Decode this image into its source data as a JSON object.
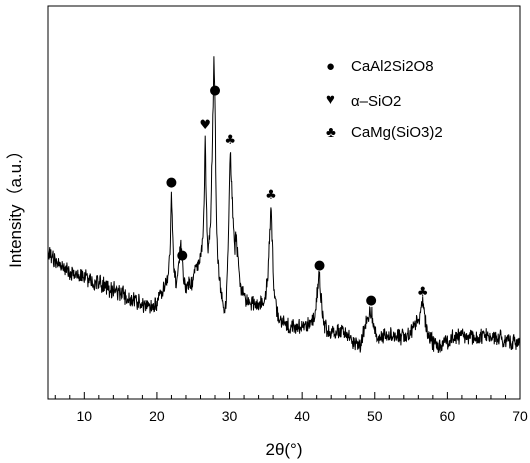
{
  "chart_data": {
    "type": "line",
    "title": "",
    "xlabel": "2θ(°)",
    "ylabel": "Intensity（a.u.）",
    "xlim": [
      5,
      70
    ],
    "x_ticks": [
      10,
      20,
      30,
      40,
      50,
      60,
      70
    ],
    "y_ticks": [],
    "grid": false,
    "legend_position": "top-right",
    "pattern_x": [
      5,
      6,
      8,
      10,
      12,
      14,
      16,
      18,
      19,
      20,
      20.5,
      21,
      21.5,
      21.8,
      22.0,
      22.3,
      22.6,
      23.0,
      23.3,
      23.6,
      23.9,
      24.3,
      24.8,
      25.3,
      25.8,
      26.2,
      26.5,
      26.65,
      26.8,
      27.0,
      27.4,
      27.7,
      27.85,
      28.0,
      28.15,
      28.35,
      28.7,
      29.1,
      29.4,
      29.6,
      29.85,
      30.1,
      30.4,
      30.7,
      30.9,
      31.2,
      31.6,
      32.2,
      33,
      34,
      34.8,
      35.3,
      35.55,
      35.7,
      35.85,
      36.1,
      36.5,
      37.2,
      38,
      39,
      40,
      41,
      41.8,
      42.2,
      42.4,
      42.6,
      42.9,
      43.3,
      44,
      45,
      46,
      47,
      48,
      48.5,
      49.2,
      49.5,
      49.8,
      50.3,
      51,
      52,
      53,
      54,
      55,
      55.8,
      56.3,
      56.6,
      56.9,
      57.4,
      58,
      59,
      60,
      61,
      62,
      63,
      64,
      65,
      66,
      67,
      68,
      69,
      70
    ],
    "pattern_y": [
      250,
      262,
      272,
      278,
      283,
      290,
      298,
      305,
      308,
      305,
      295,
      288,
      280,
      255,
      192,
      262,
      282,
      262,
      245,
      275,
      290,
      282,
      285,
      270,
      262,
      250,
      205,
      135,
      200,
      252,
      225,
      120,
      62,
      100,
      200,
      262,
      285,
      300,
      312,
      290,
      235,
      150,
      205,
      250,
      235,
      262,
      290,
      300,
      305,
      305,
      300,
      275,
      230,
      205,
      232,
      290,
      312,
      322,
      325,
      327,
      328,
      325,
      315,
      282,
      275,
      300,
      318,
      330,
      332,
      332,
      334,
      340,
      345,
      330,
      318,
      310,
      325,
      335,
      337,
      335,
      336,
      338,
      333,
      322,
      312,
      302,
      318,
      336,
      342,
      345,
      340,
      338,
      336,
      337,
      338,
      336,
      337,
      338,
      340,
      342,
      345
    ],
    "peaks": [
      {
        "two_theta": 22.0,
        "phase": "CaAl2Si2O8"
      },
      {
        "two_theta": 23.5,
        "phase": "CaAl2Si2O8"
      },
      {
        "two_theta": 26.65,
        "phase": "α–SiO2"
      },
      {
        "two_theta": 28.0,
        "phase": "CaAl2Si2O8"
      },
      {
        "two_theta": 30.1,
        "phase": "CaMg(SiO3)2"
      },
      {
        "two_theta": 35.7,
        "phase": "CaMg(SiO3)2"
      },
      {
        "two_theta": 42.4,
        "phase": "CaAl2Si2O8"
      },
      {
        "two_theta": 49.5,
        "phase": "CaAl2Si2O8"
      },
      {
        "two_theta": 56.6,
        "phase": "CaMg(SiO3)2"
      }
    ],
    "legend": [
      {
        "symbol": "●",
        "label": "CaAl2Si2O8"
      },
      {
        "symbol": "♥",
        "label": "α–SiO2"
      },
      {
        "symbol": "♣",
        "label": "CaMg(SiO3)2"
      }
    ]
  }
}
